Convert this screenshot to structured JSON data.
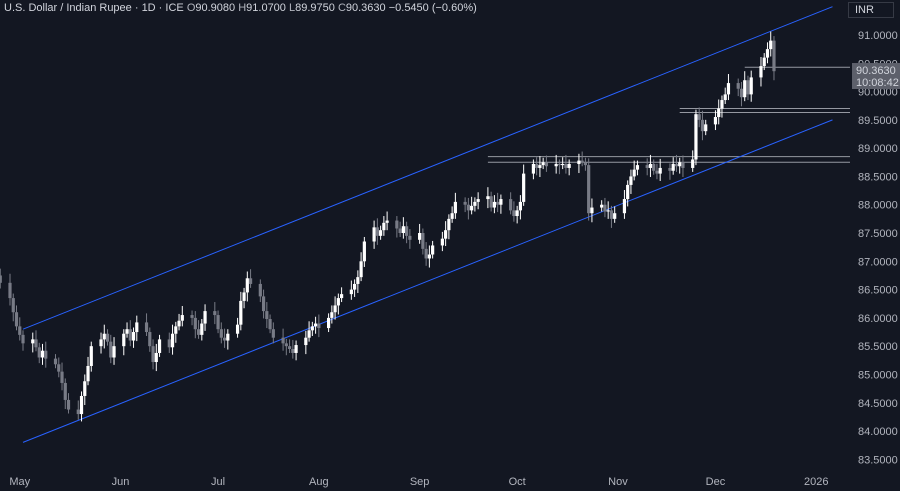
{
  "header": {
    "title": "U.S. Dollar / Indian Rupee · 1D · ICE",
    "o_label": "O",
    "o_value": "90.9080",
    "h_label": "H",
    "h_value": "91.0700",
    "l_label": "L",
    "l_value": "89.9750",
    "c_label": "C",
    "c_value": "90.3630",
    "change": "−0.5450 (−0.60%)"
  },
  "currency": "INR",
  "price_label": "90.3630",
  "countdown": "10:08:42",
  "colors": {
    "background": "#131722",
    "up": "#ffffff",
    "down": "#787b86",
    "channel": "#2962ff",
    "sr": "#9598a1"
  },
  "chart_data": {
    "type": "candlestick",
    "ylim": [
      83.4,
      91.3
    ],
    "y_ticks": [
      "83.5000",
      "84.0000",
      "84.5000",
      "85.0000",
      "85.5000",
      "86.0000",
      "86.5000",
      "87.0000",
      "87.5000",
      "88.0000",
      "88.5000",
      "89.0000",
      "89.5000",
      "90.0000",
      "90.5000",
      "91.0000"
    ],
    "x_labels": [
      "May",
      "Jun",
      "Jul",
      "Aug",
      "Sep",
      "Oct",
      "Nov",
      "Dec",
      "2026"
    ],
    "last_close": 90.363,
    "channel": {
      "upper": [
        {
          "x": "2025-05-02",
          "y": 85.8
        },
        {
          "x": "2026-01-06",
          "y": 91.5
        }
      ],
      "lower": [
        {
          "x": "2025-05-02",
          "y": 83.8
        },
        {
          "x": "2026-01-06",
          "y": 89.5
        }
      ]
    },
    "levels": [
      {
        "y": 88.85
      },
      {
        "y": 88.75
      },
      {
        "y": 89.7
      },
      {
        "y": 89.63
      },
      {
        "y": 90.43
      }
    ],
    "closes": [
      86.75,
      86.62,
      86.35,
      86.1,
      85.85,
      85.7,
      85.55,
      85.62,
      85.48,
      85.3,
      85.42,
      85.28,
      85.18,
      85.05,
      84.85,
      84.55,
      84.38,
      84.3,
      84.62,
      84.88,
      85.15,
      85.5,
      85.62,
      85.72,
      85.58,
      85.3,
      85.5,
      85.72,
      85.8,
      85.6,
      85.75,
      85.92,
      85.75,
      85.5,
      85.22,
      85.38,
      85.62,
      85.48,
      85.72,
      85.85,
      85.95,
      86.05,
      86.0,
      85.8,
      85.7,
      85.9,
      86.12,
      86.05,
      85.8,
      85.65,
      85.6,
      85.72,
      85.88,
      86.3,
      86.45,
      86.7,
      86.6,
      86.38,
      86.12,
      85.98,
      85.8,
      85.65,
      85.55,
      85.5,
      85.45,
      85.38,
      85.52,
      85.65,
      85.78,
      85.85,
      85.9,
      85.82,
      86.0,
      86.1,
      86.22,
      86.35,
      86.42,
      86.5,
      86.6,
      86.72,
      87.0,
      87.35,
      87.6,
      87.45,
      87.55,
      87.68,
      87.72,
      87.58,
      87.5,
      87.62,
      87.45,
      87.38,
      87.5,
      87.22,
      87.05,
      87.12,
      87.28,
      87.4,
      87.55,
      87.75,
      87.85,
      88.05,
      88.0,
      87.9,
      87.98,
      88.05,
      88.1,
      88.15,
      87.95,
      88.05,
      88.0,
      88.1,
      87.9,
      87.8,
      87.9,
      88.05,
      88.55,
      88.72,
      88.65,
      88.7,
      88.75,
      88.68,
      88.72,
      88.7,
      88.72,
      88.65,
      88.72,
      88.78,
      88.75,
      88.7,
      87.85,
      87.95,
      88.0,
      87.88,
      87.9,
      87.75,
      87.85,
      88.1,
      88.35,
      88.5,
      88.62,
      88.7,
      88.65,
      88.72,
      88.6,
      88.55,
      88.65,
      88.6,
      88.72,
      88.68,
      88.75,
      88.65,
      88.8,
      89.6,
      89.5,
      89.3,
      89.42,
      89.55,
      89.7,
      89.85,
      89.95,
      90.15,
      90.05,
      89.9,
      90.2,
      89.95,
      90.25,
      90.45,
      90.6,
      90.75,
      90.9,
      90.36
    ]
  }
}
